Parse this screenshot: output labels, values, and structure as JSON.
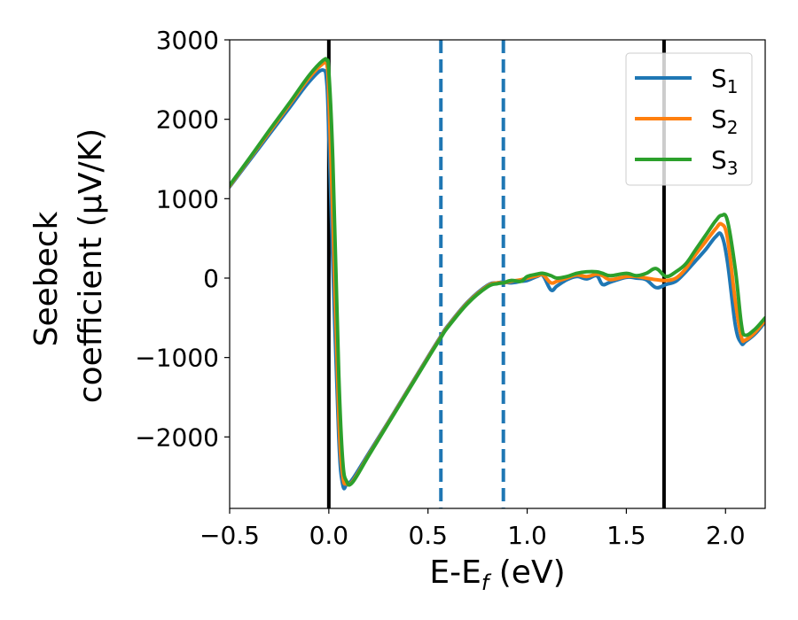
{
  "chart_data": {
    "type": "line",
    "xlabel": "E-E",
    "xlabel_sub": "f",
    "xlabel_unit": " (eV)",
    "ylabel_line1": "Seebeck",
    "ylabel_line2": "coefficient  (μV/K)",
    "xlim": [
      -0.5,
      2.2
    ],
    "ylim": [
      -2900,
      3000
    ],
    "xticks": [
      -0.5,
      0.0,
      0.5,
      1.0,
      1.5,
      2.0
    ],
    "xtick_labels": [
      "−0.5",
      "0.0",
      "0.5",
      "1.0",
      "1.5",
      "2.0"
    ],
    "yticks": [
      -2000,
      -1000,
      0,
      1000,
      2000,
      3000
    ],
    "ytick_labels": [
      "−2000",
      "−1000",
      "0",
      "1000",
      "2000",
      "3000"
    ],
    "grid": false,
    "legend_position": "top-right",
    "vlines": [
      {
        "x": 0.0,
        "style": "solid",
        "color": "#000000"
      },
      {
        "x": 1.69,
        "style": "solid",
        "color": "#000000"
      },
      {
        "x": 0.565,
        "style": "dashed",
        "color": "#1f77b4"
      },
      {
        "x": 0.88,
        "style": "dashed",
        "color": "#1f77b4"
      }
    ],
    "series": [
      {
        "name": "S",
        "sub": "1",
        "color": "#1f77b4",
        "x": [
          -0.5,
          -0.4,
          -0.3,
          -0.2,
          -0.1,
          -0.03,
          -0.01,
          0.0,
          0.02,
          0.05,
          0.07,
          0.09,
          0.12,
          0.2,
          0.3,
          0.4,
          0.5,
          0.565,
          0.6,
          0.7,
          0.8,
          0.85,
          0.88,
          0.92,
          0.97,
          1.0,
          1.05,
          1.08,
          1.12,
          1.15,
          1.2,
          1.25,
          1.3,
          1.35,
          1.38,
          1.42,
          1.5,
          1.55,
          1.6,
          1.65,
          1.7,
          1.75,
          1.8,
          1.85,
          1.9,
          1.95,
          1.98,
          2.01,
          2.05,
          2.08,
          2.1,
          2.15,
          2.2
        ],
        "y": [
          1150,
          1480,
          1810,
          2140,
          2470,
          2620,
          2450,
          1800,
          200,
          -2000,
          -2600,
          -2600,
          -2530,
          -2210,
          -1810,
          -1400,
          -990,
          -730,
          -600,
          -300,
          -90,
          -60,
          -50,
          -60,
          -40,
          -30,
          20,
          30,
          -150,
          -100,
          -20,
          20,
          -10,
          30,
          -80,
          -50,
          10,
          0,
          -20,
          -120,
          -80,
          -40,
          80,
          220,
          360,
          520,
          540,
          200,
          -600,
          -820,
          -800,
          -700,
          -550
        ]
      },
      {
        "name": "S",
        "sub": "2",
        "color": "#ff7f0e",
        "x": [
          -0.5,
          -0.4,
          -0.3,
          -0.2,
          -0.1,
          -0.03,
          -0.01,
          0.0,
          0.02,
          0.05,
          0.07,
          0.09,
          0.12,
          0.2,
          0.3,
          0.4,
          0.5,
          0.565,
          0.6,
          0.7,
          0.8,
          0.85,
          0.88,
          0.92,
          0.97,
          1.0,
          1.05,
          1.08,
          1.12,
          1.15,
          1.2,
          1.25,
          1.3,
          1.35,
          1.38,
          1.42,
          1.5,
          1.55,
          1.6,
          1.65,
          1.7,
          1.75,
          1.8,
          1.85,
          1.9,
          1.95,
          1.98,
          2.01,
          2.05,
          2.08,
          2.1,
          2.15,
          2.2
        ],
        "y": [
          1160,
          1500,
          1840,
          2180,
          2520,
          2700,
          2690,
          2300,
          800,
          -1700,
          -2480,
          -2590,
          -2560,
          -2230,
          -1820,
          -1410,
          -1000,
          -740,
          -610,
          -310,
          -100,
          -60,
          -60,
          -40,
          -20,
          0,
          30,
          40,
          -60,
          -40,
          0,
          40,
          20,
          50,
          30,
          -20,
          20,
          20,
          0,
          -20,
          -30,
          0,
          120,
          300,
          460,
          620,
          680,
          500,
          -300,
          -740,
          -780,
          -680,
          -530
        ]
      },
      {
        "name": "S",
        "sub": "3",
        "color": "#2ca02c",
        "x": [
          -0.5,
          -0.4,
          -0.3,
          -0.2,
          -0.1,
          -0.03,
          -0.01,
          0.0,
          0.02,
          0.05,
          0.07,
          0.09,
          0.12,
          0.2,
          0.3,
          0.4,
          0.5,
          0.565,
          0.6,
          0.7,
          0.8,
          0.85,
          0.88,
          0.92,
          0.97,
          1.0,
          1.05,
          1.08,
          1.12,
          1.15,
          1.2,
          1.25,
          1.3,
          1.35,
          1.38,
          1.42,
          1.5,
          1.55,
          1.6,
          1.65,
          1.7,
          1.75,
          1.8,
          1.85,
          1.9,
          1.95,
          1.98,
          2.01,
          2.05,
          2.08,
          2.1,
          2.15,
          2.2
        ],
        "y": [
          1170,
          1510,
          1860,
          2200,
          2550,
          2740,
          2740,
          2600,
          1500,
          -1200,
          -2300,
          -2560,
          -2570,
          -2240,
          -1830,
          -1420,
          -1010,
          -750,
          -620,
          -320,
          -110,
          -70,
          -60,
          -30,
          -40,
          20,
          50,
          60,
          30,
          0,
          20,
          60,
          80,
          80,
          60,
          30,
          60,
          30,
          60,
          120,
          20,
          80,
          180,
          360,
          540,
          720,
          790,
          720,
          100,
          -580,
          -720,
          -640,
          -500
        ]
      }
    ]
  }
}
